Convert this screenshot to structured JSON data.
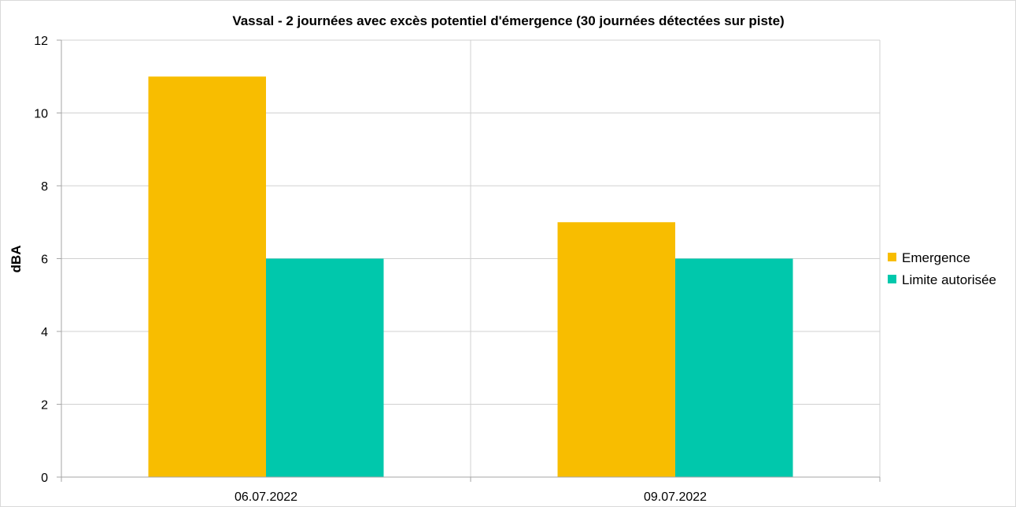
{
  "chart_data": {
    "type": "bar",
    "title": "Vassal - 2 journées avec excès potentiel d'émergence (30 journées détectées sur piste)",
    "xlabel": "",
    "ylabel": "dBA",
    "categories": [
      "06.07.2022",
      "09.07.2022"
    ],
    "series": [
      {
        "name": "Emergence",
        "values": [
          11,
          7
        ],
        "color": "#f8bd00"
      },
      {
        "name": "Limite autorisée",
        "values": [
          6,
          6
        ],
        "color": "#00c8ac"
      }
    ],
    "ylim": [
      0,
      12
    ],
    "yticks": [
      0,
      2,
      4,
      6,
      8,
      10,
      12
    ],
    "grid": true,
    "legend_position": "right"
  }
}
